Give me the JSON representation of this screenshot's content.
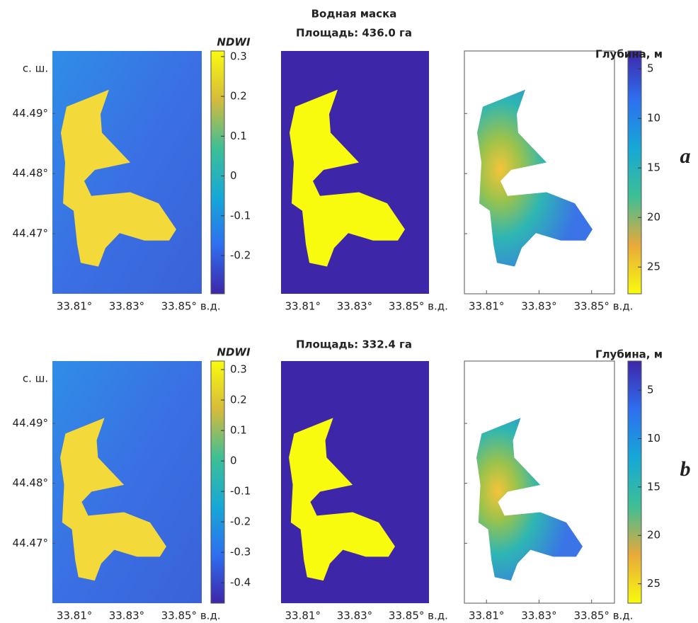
{
  "figure": {
    "mask_title": "Водная маска",
    "map_axes": {
      "xlim": [
        33.8016,
        33.8587
      ],
      "ylim": [
        44.46,
        44.5004
      ],
      "xticks": [
        {
          "value": 33.81,
          "label": "33.81°"
        },
        {
          "value": 33.83,
          "label": "33.83°"
        },
        {
          "value": 33.85,
          "label": "33.85°"
        }
      ],
      "yticks": [
        {
          "value": 44.49,
          "label": "44.49°"
        },
        {
          "value": 44.48,
          "label": "44.48°"
        },
        {
          "value": 44.47,
          "label": "44.47°"
        }
      ],
      "x_unit": "в.д.",
      "y_unit": "с. ш."
    },
    "rows": [
      {
        "label": "a",
        "area_label": "Площадь: 436.0 га",
        "ndwi_colorbar": {
          "title": "NDWI",
          "ylim": [
            -0.296,
            0.314
          ],
          "yticks": [
            -0.2,
            -0.1,
            0,
            0.1,
            0.2,
            0.3
          ]
        },
        "depth_colorbar": {
          "title": "Глубина, м",
          "ylim": [
            3.2,
            27.7
          ],
          "reversed": true,
          "yticks": [
            5,
            10,
            15,
            20,
            25
          ]
        }
      },
      {
        "label": "b",
        "area_label": "Площадь: 332.4 га",
        "ndwi_colorbar": {
          "title": "NDWI",
          "ylim": [
            -0.467,
            0.328
          ],
          "yticks": [
            -0.4,
            -0.3,
            -0.2,
            -0.1,
            0,
            0.1,
            0.2,
            0.3
          ]
        },
        "depth_colorbar": {
          "title": "Глубина, м",
          "ylim": [
            2.0,
            27.0
          ],
          "reversed": true,
          "yticks": [
            5,
            10,
            15,
            20,
            25
          ]
        }
      }
    ]
  }
}
